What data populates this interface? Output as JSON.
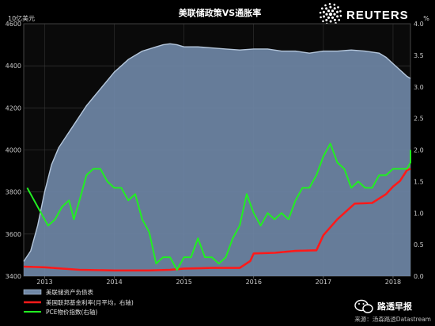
{
  "chart_data": {
    "type": "line",
    "title": "美联储政策VS通胀率",
    "left_axis": {
      "label": "10亿美元",
      "ylim": [
        3400,
        4600
      ],
      "ticks": [
        3400,
        3600,
        3800,
        4000,
        4200,
        4400,
        4600
      ]
    },
    "right_axis": {
      "label": "%",
      "ylim": [
        0,
        4
      ],
      "ticks": [
        "0.0",
        "0.5",
        "1.0",
        "1.5",
        "2.0",
        "2.5",
        "3.0",
        "3.5",
        "4.0"
      ]
    },
    "x_ticks": [
      {
        "label": "2013",
        "x": 2013.0
      },
      {
        "label": "2014",
        "x": 2014.0
      },
      {
        "label": "2015",
        "x": 2015.0
      },
      {
        "label": "2016",
        "x": 2016.0
      },
      {
        "label": "2017",
        "x": 2017.0
      },
      {
        "label": "2018",
        "x": 2018.0
      }
    ],
    "xlim": [
      2012.7,
      2018.25
    ],
    "series": [
      {
        "name": "美联储资产负债表",
        "type": "area",
        "axis": "left",
        "color": "#a8bdd6",
        "points": [
          [
            2012.7,
            3470
          ],
          [
            2012.8,
            3520
          ],
          [
            2012.9,
            3640
          ],
          [
            2013.0,
            3800
          ],
          [
            2013.1,
            3930
          ],
          [
            2013.2,
            4010
          ],
          [
            2013.3,
            4060
          ],
          [
            2013.4,
            4110
          ],
          [
            2013.5,
            4160
          ],
          [
            2013.6,
            4210
          ],
          [
            2013.7,
            4250
          ],
          [
            2013.8,
            4290
          ],
          [
            2013.9,
            4330
          ],
          [
            2014.0,
            4370
          ],
          [
            2014.1,
            4400
          ],
          [
            2014.2,
            4430
          ],
          [
            2014.3,
            4450
          ],
          [
            2014.4,
            4470
          ],
          [
            2014.5,
            4480
          ],
          [
            2014.6,
            4490
          ],
          [
            2014.7,
            4500
          ],
          [
            2014.8,
            4505
          ],
          [
            2014.9,
            4500
          ],
          [
            2015.0,
            4490
          ],
          [
            2015.2,
            4490
          ],
          [
            2015.4,
            4485
          ],
          [
            2015.6,
            4480
          ],
          [
            2015.8,
            4475
          ],
          [
            2016.0,
            4480
          ],
          [
            2016.2,
            4480
          ],
          [
            2016.4,
            4470
          ],
          [
            2016.6,
            4470
          ],
          [
            2016.8,
            4460
          ],
          [
            2017.0,
            4470
          ],
          [
            2017.2,
            4470
          ],
          [
            2017.4,
            4475
          ],
          [
            2017.6,
            4470
          ],
          [
            2017.8,
            4460
          ],
          [
            2017.9,
            4440
          ],
          [
            2018.0,
            4410
          ],
          [
            2018.1,
            4380
          ],
          [
            2018.2,
            4350
          ],
          [
            2018.25,
            4340
          ]
        ]
      },
      {
        "name": "美国联邦基金利率(月平均，右轴)",
        "type": "line",
        "axis": "right",
        "color": "#ff1a1a",
        "points": [
          [
            2012.7,
            0.15
          ],
          [
            2013.0,
            0.14
          ],
          [
            2013.5,
            0.1
          ],
          [
            2014.0,
            0.09
          ],
          [
            2014.5,
            0.09
          ],
          [
            2014.8,
            0.1
          ],
          [
            2015.0,
            0.12
          ],
          [
            2015.4,
            0.13
          ],
          [
            2015.8,
            0.13
          ],
          [
            2015.95,
            0.24
          ],
          [
            2016.0,
            0.36
          ],
          [
            2016.3,
            0.37
          ],
          [
            2016.6,
            0.4
          ],
          [
            2016.9,
            0.41
          ],
          [
            2017.0,
            0.65
          ],
          [
            2017.2,
            0.9
          ],
          [
            2017.45,
            1.15
          ],
          [
            2017.7,
            1.16
          ],
          [
            2017.9,
            1.3
          ],
          [
            2018.0,
            1.42
          ],
          [
            2018.1,
            1.51
          ],
          [
            2018.2,
            1.68
          ],
          [
            2018.25,
            1.7
          ]
        ]
      },
      {
        "name": "PCE物价指数(右轴)",
        "type": "line",
        "axis": "right",
        "color": "#22ee22",
        "points": [
          [
            2012.75,
            1.4
          ],
          [
            2012.85,
            1.2
          ],
          [
            2012.95,
            1.0
          ],
          [
            2013.05,
            0.8
          ],
          [
            2013.15,
            0.9
          ],
          [
            2013.25,
            1.1
          ],
          [
            2013.35,
            1.2
          ],
          [
            2013.42,
            0.9
          ],
          [
            2013.5,
            1.2
          ],
          [
            2013.6,
            1.6
          ],
          [
            2013.7,
            1.7
          ],
          [
            2013.8,
            1.7
          ],
          [
            2013.9,
            1.5
          ],
          [
            2014.0,
            1.4
          ],
          [
            2014.1,
            1.4
          ],
          [
            2014.2,
            1.2
          ],
          [
            2014.3,
            1.3
          ],
          [
            2014.4,
            0.9
          ],
          [
            2014.5,
            0.7
          ],
          [
            2014.6,
            0.2
          ],
          [
            2014.7,
            0.3
          ],
          [
            2014.8,
            0.3
          ],
          [
            2014.9,
            0.1
          ],
          [
            2015.0,
            0.3
          ],
          [
            2015.1,
            0.3
          ],
          [
            2015.2,
            0.6
          ],
          [
            2015.3,
            0.3
          ],
          [
            2015.4,
            0.3
          ],
          [
            2015.5,
            0.2
          ],
          [
            2015.6,
            0.3
          ],
          [
            2015.7,
            0.6
          ],
          [
            2015.8,
            0.8
          ],
          [
            2015.9,
            1.3
          ],
          [
            2016.0,
            1.0
          ],
          [
            2016.1,
            0.8
          ],
          [
            2016.2,
            1.0
          ],
          [
            2016.3,
            0.9
          ],
          [
            2016.4,
            1.0
          ],
          [
            2016.5,
            0.9
          ],
          [
            2016.6,
            1.2
          ],
          [
            2016.7,
            1.4
          ],
          [
            2016.8,
            1.4
          ],
          [
            2016.9,
            1.6
          ],
          [
            2017.0,
            1.9
          ],
          [
            2017.1,
            2.1
          ],
          [
            2017.2,
            1.8
          ],
          [
            2017.3,
            1.7
          ],
          [
            2017.4,
            1.4
          ],
          [
            2017.5,
            1.5
          ],
          [
            2017.6,
            1.4
          ],
          [
            2017.7,
            1.4
          ],
          [
            2017.8,
            1.6
          ],
          [
            2017.9,
            1.6
          ],
          [
            2018.0,
            1.7
          ],
          [
            2018.1,
            1.7
          ],
          [
            2018.2,
            1.7
          ],
          [
            2018.3,
            1.8
          ],
          [
            2018.4,
            2.0
          ],
          [
            2018.5,
            2.0
          ]
        ]
      }
    ],
    "grid": true,
    "legend_position": "bottom-left"
  },
  "header": {
    "brand": "REUTERS",
    "brand_icon": "reuters-dot-logo-icon"
  },
  "footer": {
    "watermark_icon": "wechat-icon",
    "watermark_text": "路透早报",
    "source": "来源：汤森路透Datastream"
  },
  "colors": {
    "background": "#000000",
    "plot_background": "#0a0a0a",
    "gridline": "#3c3c3c",
    "area_fill": "#6f87a6",
    "area_stroke": "#b5c7dc"
  }
}
